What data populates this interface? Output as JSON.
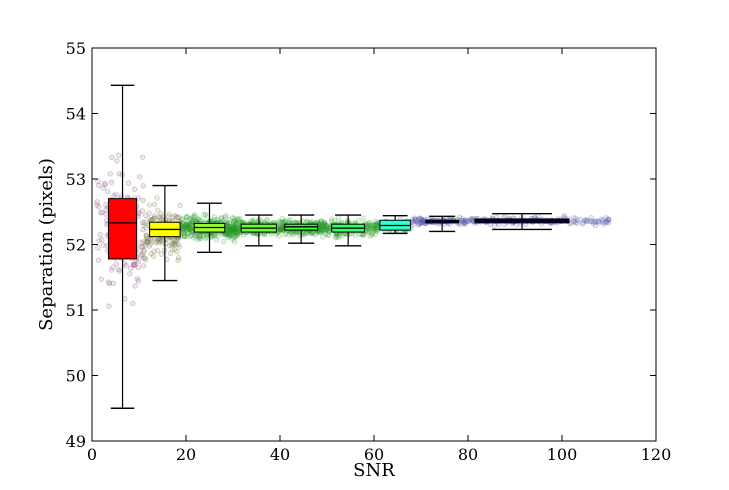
{
  "chart_data": {
    "type": "scatter",
    "xlabel": "SNR",
    "ylabel": "Separation (pixels)",
    "xlim": [
      0,
      120
    ],
    "ylim": [
      49,
      55
    ],
    "x_ticks": [
      "0",
      "20",
      "40",
      "60",
      "80",
      "100",
      "120"
    ],
    "y_ticks": [
      "49",
      "50",
      "51",
      "52",
      "53",
      "54",
      "55"
    ],
    "grid": false,
    "boxes": [
      {
        "x": 6.5,
        "whisker_low": 49.5,
        "q1": 51.78,
        "median": 52.33,
        "q3": 52.7,
        "whisker_high": 54.43,
        "color": "#ff0000",
        "width": 6.0
      },
      {
        "x": 15.5,
        "whisker_low": 51.45,
        "q1": 52.12,
        "median": 52.23,
        "q3": 52.34,
        "whisker_high": 52.9,
        "color": "#ffff00",
        "width": 6.5
      },
      {
        "x": 25.0,
        "whisker_low": 51.88,
        "q1": 52.19,
        "median": 52.26,
        "q3": 52.32,
        "whisker_high": 52.63,
        "color": "#99ff33",
        "width": 6.5
      },
      {
        "x": 35.5,
        "whisker_low": 51.98,
        "q1": 52.19,
        "median": 52.25,
        "q3": 52.31,
        "whisker_high": 52.45,
        "color": "#66ff33",
        "width": 7.5
      },
      {
        "x": 44.5,
        "whisker_low": 52.02,
        "q1": 52.22,
        "median": 52.27,
        "q3": 52.31,
        "whisker_high": 52.45,
        "color": "#33ff33",
        "width": 7.0
      },
      {
        "x": 54.5,
        "whisker_low": 51.98,
        "q1": 52.19,
        "median": 52.25,
        "q3": 52.31,
        "whisker_high": 52.45,
        "color": "#33ff66",
        "width": 7.0
      },
      {
        "x": 64.5,
        "whisker_low": 52.17,
        "q1": 52.22,
        "median": 52.29,
        "q3": 52.37,
        "whisker_high": 52.44,
        "color": "#33ffcc",
        "width": 6.5
      },
      {
        "x": 74.5,
        "whisker_low": 52.2,
        "q1": 52.33,
        "median": 52.35,
        "q3": 52.37,
        "whisker_high": 52.43,
        "color": "#0000aa",
        "width": 7.0
      },
      {
        "x": 91.5,
        "whisker_low": 52.23,
        "q1": 52.33,
        "median": 52.36,
        "q3": 52.39,
        "whisker_high": 52.47,
        "color": "#00006e",
        "width": 20.0
      }
    ],
    "point_clouds": [
      {
        "name": "",
        "x_range": [
          1,
          11
        ],
        "y_center": 52.2,
        "y_spread": 0.9,
        "count": 140,
        "color": "#7a3a70"
      },
      {
        "name": "",
        "x_range": [
          11,
          19
        ],
        "y_center": 52.2,
        "y_spread": 0.35,
        "count": 160,
        "color": "#6a6a3a"
      },
      {
        "name": "",
        "x_range": [
          19,
          31
        ],
        "y_center": 52.25,
        "y_spread": 0.15,
        "count": 380,
        "color": "#2a9a2a"
      },
      {
        "name": "",
        "x_range": [
          31,
          49
        ],
        "y_center": 52.26,
        "y_spread": 0.1,
        "count": 420,
        "color": "#2a9a2a"
      },
      {
        "name": "",
        "x_range": [
          49,
          61
        ],
        "y_center": 52.25,
        "y_spread": 0.1,
        "count": 220,
        "color": "#2a9a2a"
      },
      {
        "name": "",
        "x_range": [
          61,
          68
        ],
        "y_center": 52.29,
        "y_spread": 0.07,
        "count": 90,
        "color": "#2a9a5a"
      },
      {
        "name": "",
        "x_range": [
          68,
          80
        ],
        "y_center": 52.35,
        "y_spread": 0.05,
        "count": 110,
        "color": "#5a5aaa"
      },
      {
        "name": "",
        "x_range": [
          80,
          110
        ],
        "y_center": 52.36,
        "y_spread": 0.05,
        "count": 150,
        "color": "#5a5aaa"
      }
    ]
  }
}
